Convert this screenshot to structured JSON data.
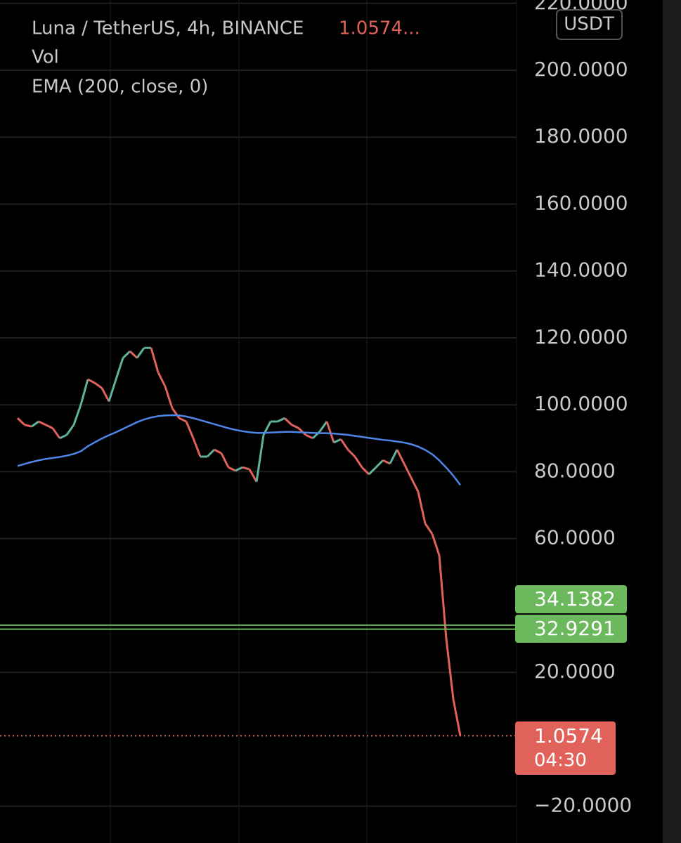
{
  "header": {
    "last_price": "1.0574...",
    "volume_label": "Vol"
  },
  "chart_data": {
    "type": "line",
    "currency": "USDT",
    "ylim": [
      -31,
      221
    ],
    "yticks": [
      {
        "value": 220,
        "label": "220.0000"
      },
      {
        "value": 200,
        "label": "200.0000"
      },
      {
        "value": 180,
        "label": "180.0000"
      },
      {
        "value": 160,
        "label": "160.0000"
      },
      {
        "value": 140,
        "label": "140.0000"
      },
      {
        "value": 120,
        "label": "120.0000"
      },
      {
        "value": 100,
        "label": "100.0000"
      },
      {
        "value": 80,
        "label": "80.0000"
      },
      {
        "value": 60,
        "label": "60.0000"
      },
      {
        "value": 20,
        "label": "20.0000"
      },
      {
        "value": -20,
        "label": "−20.0000"
      }
    ],
    "grid": true,
    "up_color": "#5fb39a",
    "series": [
      {
        "name": "Luna / TetherUS, 4h, BINANCE",
        "color": "#e0625a",
        "values": [
          96,
          94,
          93.5,
          95,
          94,
          93,
          90,
          91,
          94,
          100,
          107.6,
          106.5,
          105,
          101,
          107.6,
          114,
          116,
          114,
          117,
          117,
          109.7,
          105.5,
          99,
          96,
          95,
          90,
          84.5,
          84.5,
          86.6,
          85.5,
          81.3,
          80.3,
          81.3,
          80.7,
          77,
          91,
          95,
          95,
          96,
          94,
          93,
          91,
          90,
          92,
          95,
          88.7,
          89.7,
          86.6,
          84.5,
          81.3,
          79.2,
          81.3,
          83.4,
          82.4,
          86.6,
          82.4,
          78.2,
          74,
          64.5,
          61.4,
          55,
          30,
          12,
          1.0574
        ]
      },
      {
        "name": "EMA (200, close, 0)",
        "color": "#4f86e8",
        "values": [
          81.7,
          82.3,
          82.9,
          83.4,
          83.8,
          84.1,
          84.4,
          84.8,
          85.3,
          86.1,
          87.6,
          88.8,
          89.9,
          90.9,
          91.8,
          92.8,
          93.8,
          94.8,
          95.6,
          96.2,
          96.6,
          96.8,
          96.9,
          96.8,
          96.5,
          96.0,
          95.4,
          94.8,
          94.2,
          93.6,
          93.0,
          92.5,
          92.1,
          91.8,
          91.6,
          91.6,
          91.7,
          91.8,
          91.9,
          91.9,
          91.8,
          91.7,
          91.6,
          91.5,
          91.5,
          91.4,
          91.2,
          91.0,
          90.7,
          90.4,
          90.1,
          89.8,
          89.5,
          89.3,
          89.0,
          88.7,
          88.2,
          87.5,
          86.5,
          85.2,
          83.4,
          81.2,
          78.8,
          76.0
        ]
      }
    ],
    "price_lines": [
      {
        "value": 34.1382,
        "color": "#6cb85c"
      },
      {
        "value": 32.9291,
        "color": "#6cb85c"
      }
    ],
    "countdown": "04:30"
  }
}
